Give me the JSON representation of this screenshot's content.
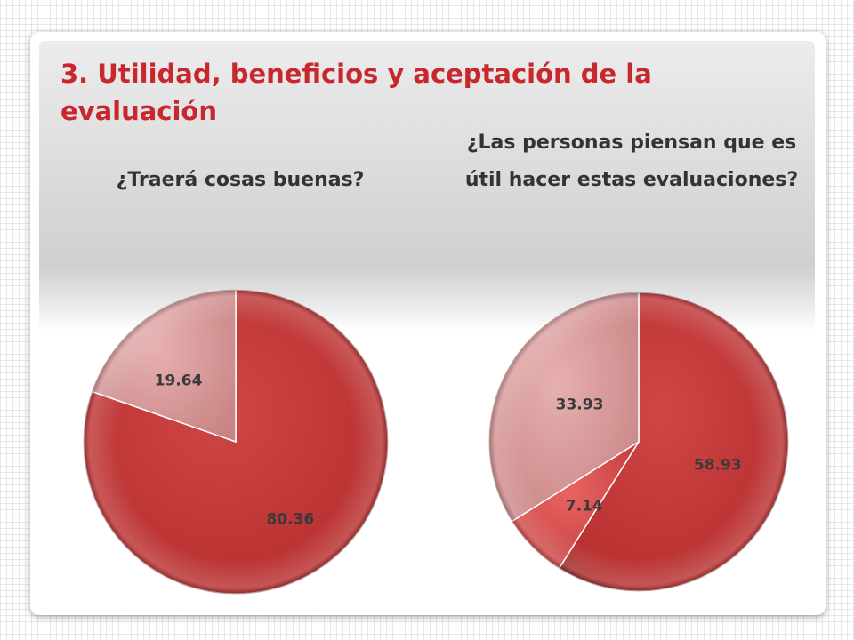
{
  "slide": {
    "title": "3. Utilidad, beneficios y aceptación de la evaluación"
  },
  "colors": {
    "title": "#c8282d",
    "dark_red": "#c53535",
    "light_red": "#e05050",
    "pink": "#d99a9a"
  },
  "chart_data": [
    {
      "type": "pie",
      "title": "¿Traerá cosas buenas?",
      "values": [
        80.36,
        19.64
      ],
      "labels": [
        "80.36",
        "19.64"
      ]
    },
    {
      "type": "pie",
      "title": "¿Las personas piensan que es útil hacer estas evaluaciones?",
      "values": [
        58.93,
        7.14,
        33.93
      ],
      "labels": [
        "58.93",
        "7.14",
        "33.93"
      ]
    }
  ]
}
